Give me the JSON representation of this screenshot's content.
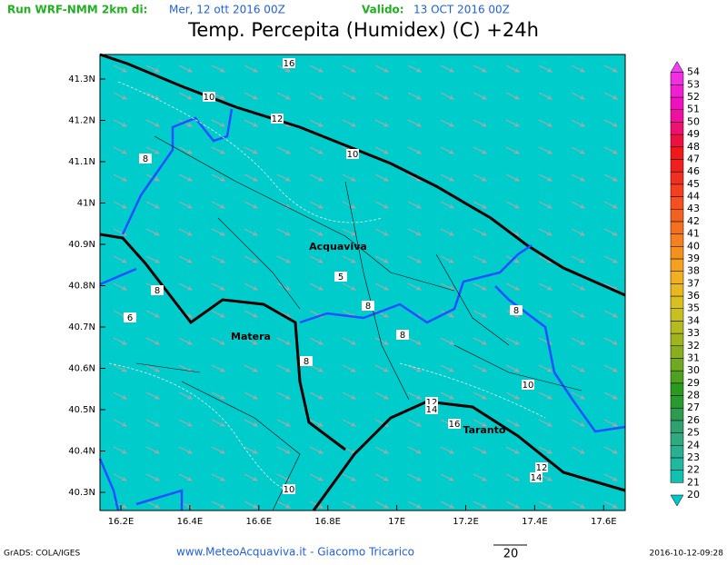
{
  "header": {
    "run_label": "Run WRF-NMM 2km di:",
    "run_date": "Mer, 12 ott 2016 00Z",
    "valid_label": "Valido:",
    "valid_date": "13 OCT 2016 00Z"
  },
  "title": "Temp. Percepita (Humidex) (C) +24h",
  "lat_labels": [
    "41.3N",
    "41.2N",
    "41.1N",
    "41N",
    "40.9N",
    "40.8N",
    "40.7N",
    "40.6N",
    "40.5N",
    "40.4N",
    "40.3N"
  ],
  "lon_labels": [
    "16.2E",
    "16.4E",
    "16.6E",
    "16.8E",
    "17E",
    "17.2E",
    "17.4E",
    "17.6E"
  ],
  "contour_labels": [
    "16",
    "10",
    "12",
    "10",
    "8",
    "8",
    "6",
    "5",
    "8",
    "8",
    "8",
    "8",
    "10",
    "12",
    "14",
    "16",
    "12",
    "14",
    "10"
  ],
  "places": [
    "Acquaviva",
    "Matera",
    "Taranto"
  ],
  "colorbar": {
    "levels": [
      {
        "value": 20,
        "color": "#00c8c8"
      },
      {
        "value": 21,
        "color": "#10c0b0"
      },
      {
        "value": 22,
        "color": "#20b8a0"
      },
      {
        "value": 23,
        "color": "#28b090"
      },
      {
        "value": 24,
        "color": "#30a880"
      },
      {
        "value": 25,
        "color": "#30a070"
      },
      {
        "value": 26,
        "color": "#2e9a50"
      },
      {
        "value": 27,
        "color": "#2a9a30"
      },
      {
        "value": 28,
        "color": "#2a9a20"
      },
      {
        "value": 29,
        "color": "#50a020"
      },
      {
        "value": 30,
        "color": "#70a820"
      },
      {
        "value": 31,
        "color": "#8aae20"
      },
      {
        "value": 32,
        "color": "#a0b420"
      },
      {
        "value": 33,
        "color": "#b4ba20"
      },
      {
        "value": 34,
        "color": "#c8c020"
      },
      {
        "value": 35,
        "color": "#d8c020"
      },
      {
        "value": 36,
        "color": "#e8b820"
      },
      {
        "value": 37,
        "color": "#f0b020"
      },
      {
        "value": 38,
        "color": "#f4a020"
      },
      {
        "value": 39,
        "color": "#f49020"
      },
      {
        "value": 40,
        "color": "#f48020"
      },
      {
        "value": 41,
        "color": "#f47020"
      },
      {
        "value": 42,
        "color": "#f46020"
      },
      {
        "value": 43,
        "color": "#f45020"
      },
      {
        "value": 44,
        "color": "#f44020"
      },
      {
        "value": 45,
        "color": "#f03020"
      },
      {
        "value": 46,
        "color": "#f02020"
      },
      {
        "value": 47,
        "color": "#f01818"
      },
      {
        "value": 48,
        "color": "#f01040"
      },
      {
        "value": 49,
        "color": "#f01070"
      },
      {
        "value": 50,
        "color": "#f010a0"
      },
      {
        "value": 51,
        "color": "#f010c0"
      },
      {
        "value": 52,
        "color": "#f020d0"
      },
      {
        "value": 53,
        "color": "#f030e0"
      },
      {
        "value": 54,
        "color": "#f040f0"
      }
    ]
  },
  "footer": {
    "credits": "GrADS: COLA/IGES",
    "site": "www.MeteoAcquaviva.it - Giacomo Tricarico",
    "vector_ref": "20",
    "timestamp": "2016-10-12-09:28"
  }
}
